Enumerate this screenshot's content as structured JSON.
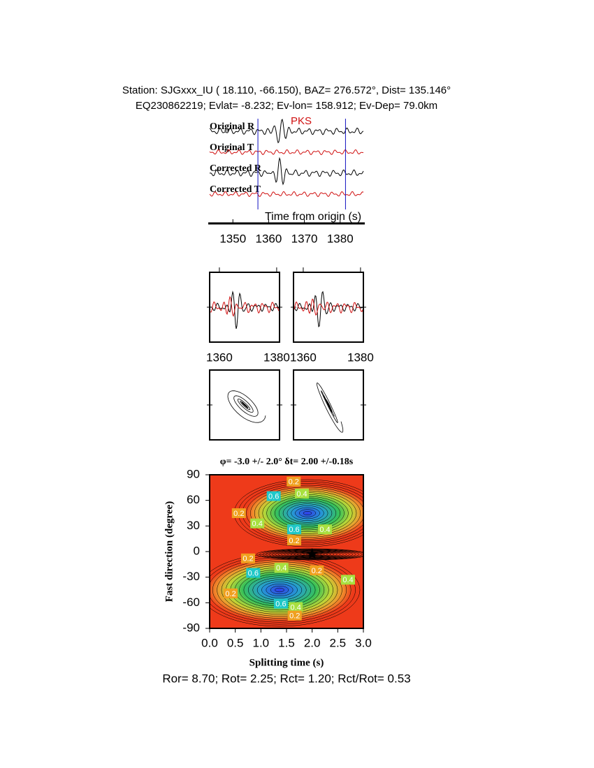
{
  "header": {
    "line1": "Station: SJGxxx_IU (  18.110,  -66.150), BAZ=  276.572°, Dist=  135.146°",
    "line2": "EQ230862219; Evlat=  -8.232; Ev-lon= 158.912; Ev-Dep= 79.0km"
  },
  "chart_data": [
    {
      "type": "waveform",
      "traces": [
        "Original R",
        "Original T",
        "Corrected R",
        "Corrected T"
      ],
      "phase": "PKS",
      "xlabel": "Time from origin (s)",
      "xlim": [
        1343.5,
        1386.5
      ],
      "xticks": [
        1350,
        1360,
        1370,
        1380
      ],
      "window": [
        1357,
        1381.5
      ]
    },
    {
      "type": "particle-motion",
      "xlim": [
        1356.6,
        1381
      ],
      "xticks": [
        1360,
        1380
      ]
    },
    {
      "type": "particle-motion",
      "xlim": [
        1356.6,
        1381
      ],
      "xticks": [
        1360,
        1380
      ]
    },
    {
      "type": "contour",
      "title": "φ= -3.0 +/- 2.0° δt= 2.00 +/-0.18s",
      "xlabel": "Splitting time (s)",
      "ylabel": "Fast direction (degree)",
      "xlim": [
        0,
        3
      ],
      "xticks": [
        {
          "value": 0,
          "label": "0.0"
        },
        0.5,
        {
          "value": 1,
          "label": "1.0"
        },
        1.5,
        {
          "value": 2,
          "label": "2.0"
        },
        2.5,
        {
          "value": 3,
          "label": "3.0"
        }
      ],
      "ylim": [
        -90,
        90
      ],
      "yticks": [
        90,
        60,
        30,
        0,
        -30,
        -60,
        -90
      ],
      "best": {
        "x": 2.0,
        "y": -3.0
      },
      "contour_labels": [
        {
          "x": 1.64,
          "y": 82,
          "value": 0.2
        },
        {
          "x": 1.8,
          "y": 68,
          "value": 0.4
        },
        {
          "x": 1.25,
          "y": 65,
          "value": 0.6
        },
        {
          "x": 0.93,
          "y": 33,
          "value": 0.4
        },
        {
          "x": 1.65,
          "y": 26,
          "value": 0.6
        },
        {
          "x": 1.65,
          "y": 13,
          "value": 0.2
        },
        {
          "x": 2.25,
          "y": 26,
          "value": 0.4
        },
        {
          "x": 0.75,
          "y": -8,
          "value": 0.2
        },
        {
          "x": 2.09,
          "y": -22,
          "value": 0.2
        },
        {
          "x": 1.4,
          "y": -19,
          "value": 0.4
        },
        {
          "x": 0.85,
          "y": -25,
          "value": 0.6
        },
        {
          "x": 2.7,
          "y": -33,
          "value": 0.4
        },
        {
          "x": 1.39,
          "y": -61,
          "value": 0.6
        },
        {
          "x": 1.68,
          "y": -65,
          "value": 0.4
        },
        {
          "x": 1.66,
          "y": -75,
          "value": 0.2
        },
        {
          "x": 0.57,
          "y": 45,
          "value": 0.2
        },
        {
          "x": 0.41,
          "y": -49,
          "value": 0.2
        }
      ]
    }
  ],
  "footer": "Ror= 8.70; Rot= 2.25; Rct= 1.20; Rct/Rot= 0.53"
}
